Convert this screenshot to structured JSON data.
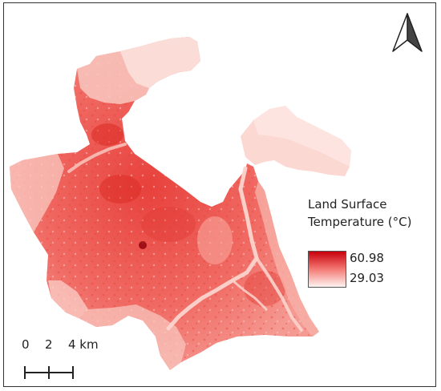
{
  "legend": {
    "title_line1": "Land Surface",
    "title_line2": "Temperature (°C)",
    "max_value": "60.98",
    "min_value": "29.03",
    "color_high": "#d7191c",
    "color_low": "#fdf1ee"
  },
  "scale_bar": {
    "label_0": "0",
    "label_2": "2",
    "label_4": "4 km"
  },
  "north_arrow": {
    "icon": "north-arrow-icon"
  }
}
